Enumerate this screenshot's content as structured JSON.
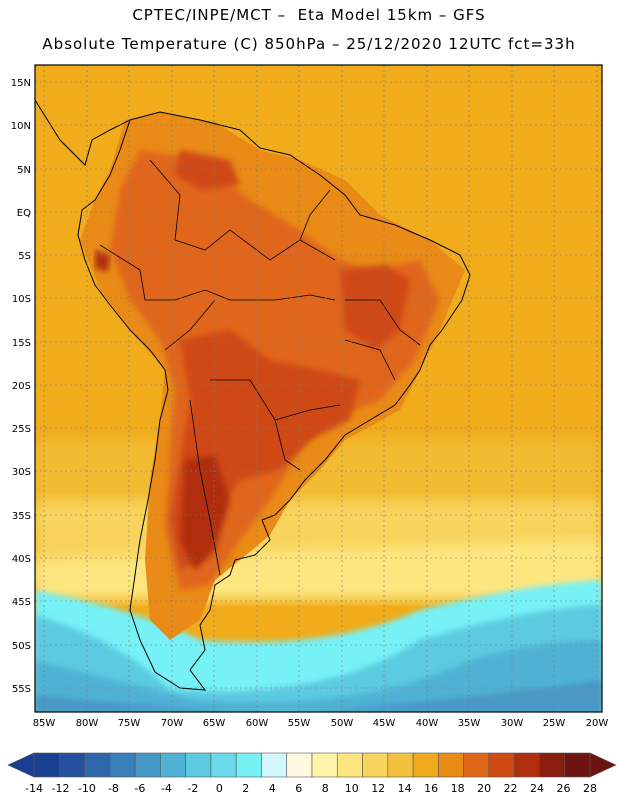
{
  "header": {
    "line1": "CPTEC/INPE/MCT –  Eta Model 15km – GFS",
    "line2": "Absolute Temperature (C) 850hPa – 25/12/2020 12UTC fct=33h"
  },
  "axes": {
    "lat_labels": [
      "15N",
      "10N",
      "5N",
      "EQ",
      "5S",
      "10S",
      "15S",
      "20S",
      "25S",
      "30S",
      "35S",
      "40S",
      "45S",
      "50S",
      "55S"
    ],
    "lon_labels": [
      "85W",
      "80W",
      "75W",
      "70W",
      "65W",
      "60W",
      "55W",
      "50W",
      "45W",
      "40W",
      "35W",
      "30W",
      "25W",
      "20W"
    ]
  },
  "colorbar": {
    "labels": [
      "-14",
      "-12",
      "-10",
      "-8",
      "-6",
      "-4",
      "-2",
      "0",
      "2",
      "4",
      "6",
      "8",
      "10",
      "12",
      "14",
      "16",
      "18",
      "20",
      "22",
      "24",
      "26",
      "28"
    ],
    "colors": [
      "#1a3f91",
      "#25509f",
      "#2f67ad",
      "#3a7fbb",
      "#4898c6",
      "#4fb2d5",
      "#5ccae0",
      "#6ad9ea",
      "#76f1f6",
      "#d3f6fb",
      "#fff8e0",
      "#fff4a8",
      "#fde680",
      "#f8d45c",
      "#f2c23e",
      "#eeaa1a",
      "#e98b16",
      "#e0661a",
      "#cf4a12",
      "#b02e0e",
      "#8a1e0e",
      "#6e1410"
    ]
  },
  "legend_colors": {
    "ocean_warm": "#f0ac1a",
    "ocean_south": "#f8d45c",
    "land_hot": "#cf4a12",
    "land_mid": "#e0661a",
    "cold_band": "#5ccae0"
  }
}
